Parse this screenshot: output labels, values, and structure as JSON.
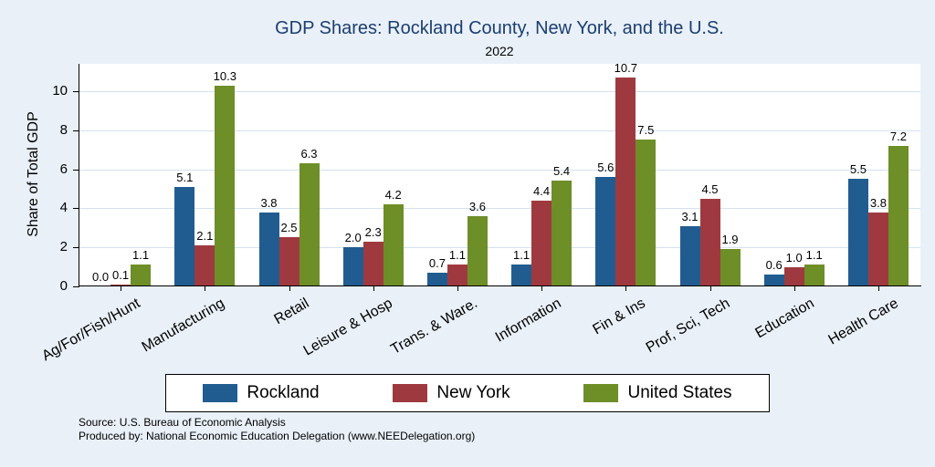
{
  "header": {
    "title": "GDP Shares: Rockland County, New York, and the U.S.",
    "subtitle": "2022"
  },
  "chart_data": {
    "type": "bar",
    "title": "GDP Shares: Rockland County, New York, and the U.S.",
    "subtitle": "2022",
    "ylabel": "Share of Total GDP",
    "categories": [
      "Ag/For/Fish/Hunt",
      "Manufacturing",
      "Retail",
      "Leisure & Hosp",
      "Trans. & Ware.",
      "Information",
      "Fin & Ins",
      "Prof, Sci, Tech",
      "Education",
      "Health Care"
    ],
    "series": [
      {
        "name": "Rockland",
        "color": "#215c90",
        "values": [
          0.0,
          5.1,
          3.8,
          2.0,
          0.7,
          1.1,
          5.6,
          3.1,
          0.6,
          5.5
        ]
      },
      {
        "name": "New York",
        "color": "#9e3a3f",
        "values": [
          0.1,
          2.1,
          2.5,
          2.3,
          1.1,
          4.4,
          10.7,
          4.5,
          1.0,
          3.8
        ]
      },
      {
        "name": "United States",
        "color": "#6e8e27",
        "values": [
          1.1,
          10.3,
          6.3,
          4.2,
          3.6,
          5.4,
          7.5,
          1.9,
          1.1,
          7.2
        ]
      }
    ],
    "yticks": [
      0,
      2,
      4,
      6,
      8,
      10
    ],
    "ylim": [
      0,
      11.4
    ],
    "grid": true,
    "legend_position": "bottom",
    "value_labels": true
  },
  "footer": {
    "source_line1": "Source: U.S. Bureau of Economic Analysis",
    "source_line2": "Produced by: National Economic Education Delegation (www.NEEDelegation.org)"
  }
}
